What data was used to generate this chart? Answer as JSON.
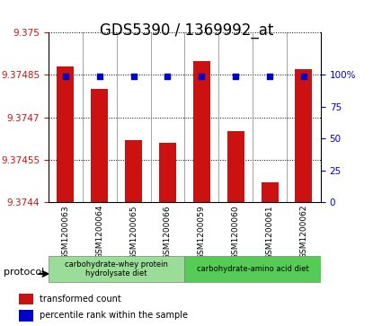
{
  "title": "GDS5390 / 1369992_at",
  "samples": [
    "GSM1200063",
    "GSM1200064",
    "GSM1200065",
    "GSM1200066",
    "GSM1200059",
    "GSM1200060",
    "GSM1200061",
    "GSM1200062"
  ],
  "bar_values": [
    9.37488,
    9.3748,
    9.37462,
    9.37461,
    9.3749,
    9.37465,
    9.37447,
    9.37487
  ],
  "percentile_values": [
    99,
    99,
    99,
    99,
    99,
    99,
    99,
    99
  ],
  "ymin": 9.3744,
  "ymax": 9.375,
  "yticks": [
    9.3744,
    9.37455,
    9.3747,
    9.37485,
    9.375
  ],
  "ytick_labels": [
    "9.3744",
    "9.37455",
    "9.3747",
    "9.37485",
    "9.375"
  ],
  "right_yticks": [
    0,
    25,
    50,
    75,
    100
  ],
  "right_ytick_labels": [
    "0",
    "25",
    "50",
    "75",
    "100%"
  ],
  "bar_color": "#cc1111",
  "dot_color": "#0000cc",
  "protocol_groups": [
    {
      "label": "carbohydrate-whey protein\nhydrolysate diet",
      "indices": [
        0,
        1,
        2,
        3
      ],
      "color": "#99dd99"
    },
    {
      "label": "carbohydrate-amino acid diet",
      "indices": [
        4,
        5,
        6,
        7
      ],
      "color": "#55cc55"
    }
  ],
  "legend_bar_label": "transformed count",
  "legend_dot_label": "percentile rank within the sample",
  "protocol_label": "protocol",
  "background_color": "#f0f0f0",
  "axis_bg": "#ffffff",
  "title_fontsize": 12,
  "tick_fontsize": 7.5,
  "label_fontsize": 8
}
